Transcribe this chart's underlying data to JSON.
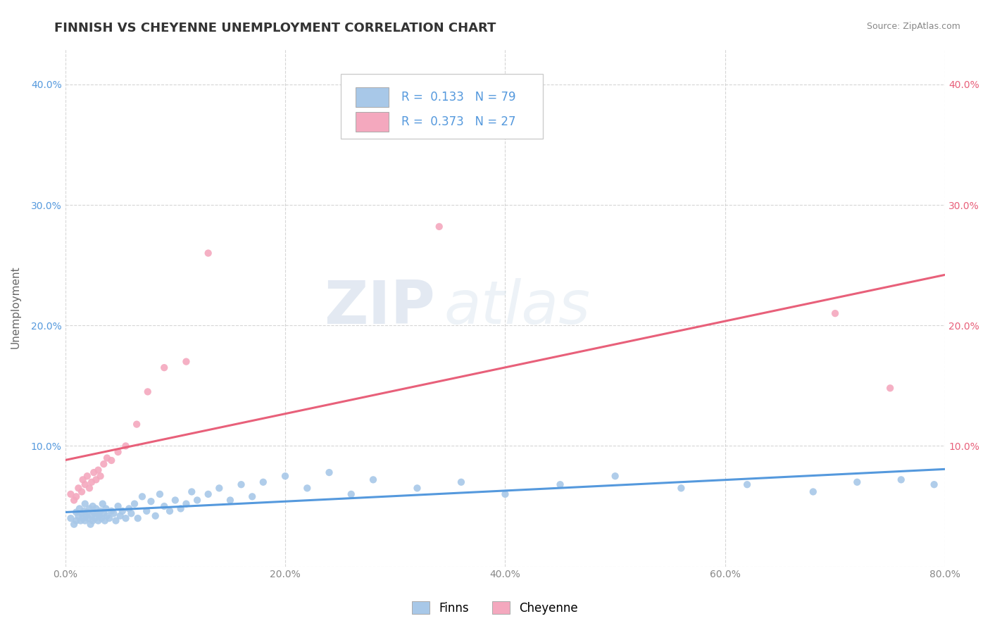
{
  "title": "FINNISH VS CHEYENNE UNEMPLOYMENT CORRELATION CHART",
  "source_text": "Source: ZipAtlas.com",
  "ylabel": "Unemployment",
  "xlim": [
    0.0,
    0.8
  ],
  "ylim": [
    0.0,
    0.43
  ],
  "xticks": [
    0.0,
    0.2,
    0.4,
    0.6,
    0.8
  ],
  "xticklabels": [
    "0.0%",
    "20.0%",
    "40.0%",
    "60.0%",
    "80.0%"
  ],
  "yticks": [
    0.0,
    0.1,
    0.2,
    0.3,
    0.4
  ],
  "yticklabels_left": [
    "",
    "10.0%",
    "20.0%",
    "30.0%",
    "40.0%"
  ],
  "yticklabels_right": [
    "",
    "10.0%",
    "20.0%",
    "30.0%",
    "40.0%"
  ],
  "legend_r_finns": "0.133",
  "legend_n_finns": "79",
  "legend_r_cheyenne": "0.373",
  "legend_n_cheyenne": "27",
  "finns_color": "#a8c8e8",
  "cheyenne_color": "#f4a8be",
  "finns_line_color": "#5599dd",
  "cheyenne_line_color": "#e8607a",
  "watermark_zip": "ZIP",
  "watermark_atlas": "atlas",
  "finns_scatter_x": [
    0.005,
    0.008,
    0.01,
    0.01,
    0.012,
    0.013,
    0.014,
    0.015,
    0.016,
    0.017,
    0.018,
    0.018,
    0.019,
    0.02,
    0.021,
    0.022,
    0.023,
    0.024,
    0.025,
    0.025,
    0.026,
    0.027,
    0.028,
    0.029,
    0.03,
    0.031,
    0.032,
    0.033,
    0.034,
    0.035,
    0.036,
    0.037,
    0.038,
    0.04,
    0.042,
    0.044,
    0.046,
    0.048,
    0.05,
    0.052,
    0.055,
    0.058,
    0.06,
    0.063,
    0.066,
    0.07,
    0.074,
    0.078,
    0.082,
    0.086,
    0.09,
    0.095,
    0.1,
    0.105,
    0.11,
    0.115,
    0.12,
    0.13,
    0.14,
    0.15,
    0.16,
    0.17,
    0.18,
    0.2,
    0.22,
    0.24,
    0.26,
    0.28,
    0.32,
    0.36,
    0.4,
    0.45,
    0.5,
    0.56,
    0.62,
    0.68,
    0.72,
    0.76,
    0.79
  ],
  "finns_scatter_y": [
    0.04,
    0.035,
    0.038,
    0.045,
    0.042,
    0.048,
    0.038,
    0.044,
    0.04,
    0.046,
    0.038,
    0.052,
    0.042,
    0.045,
    0.04,
    0.048,
    0.035,
    0.042,
    0.038,
    0.05,
    0.045,
    0.04,
    0.048,
    0.044,
    0.038,
    0.042,
    0.046,
    0.04,
    0.052,
    0.044,
    0.038,
    0.048,
    0.042,
    0.04,
    0.046,
    0.044,
    0.038,
    0.05,
    0.042,
    0.046,
    0.04,
    0.048,
    0.044,
    0.052,
    0.04,
    0.058,
    0.046,
    0.054,
    0.042,
    0.06,
    0.05,
    0.046,
    0.055,
    0.048,
    0.052,
    0.062,
    0.055,
    0.06,
    0.065,
    0.055,
    0.068,
    0.058,
    0.07,
    0.075,
    0.065,
    0.078,
    0.06,
    0.072,
    0.065,
    0.07,
    0.06,
    0.068,
    0.075,
    0.065,
    0.068,
    0.062,
    0.07,
    0.072,
    0.068
  ],
  "cheyenne_scatter_x": [
    0.005,
    0.008,
    0.01,
    0.012,
    0.015,
    0.016,
    0.018,
    0.02,
    0.022,
    0.024,
    0.026,
    0.028,
    0.03,
    0.032,
    0.035,
    0.038,
    0.042,
    0.048,
    0.055,
    0.065,
    0.075,
    0.09,
    0.11,
    0.13,
    0.34,
    0.7,
    0.75
  ],
  "cheyenne_scatter_y": [
    0.06,
    0.055,
    0.058,
    0.065,
    0.062,
    0.072,
    0.068,
    0.075,
    0.065,
    0.07,
    0.078,
    0.072,
    0.08,
    0.075,
    0.085,
    0.09,
    0.088,
    0.095,
    0.1,
    0.118,
    0.145,
    0.165,
    0.17,
    0.26,
    0.282,
    0.21,
    0.148
  ],
  "title_fontsize": 13,
  "axis_label_fontsize": 11,
  "tick_fontsize": 10,
  "legend_fontsize": 12
}
